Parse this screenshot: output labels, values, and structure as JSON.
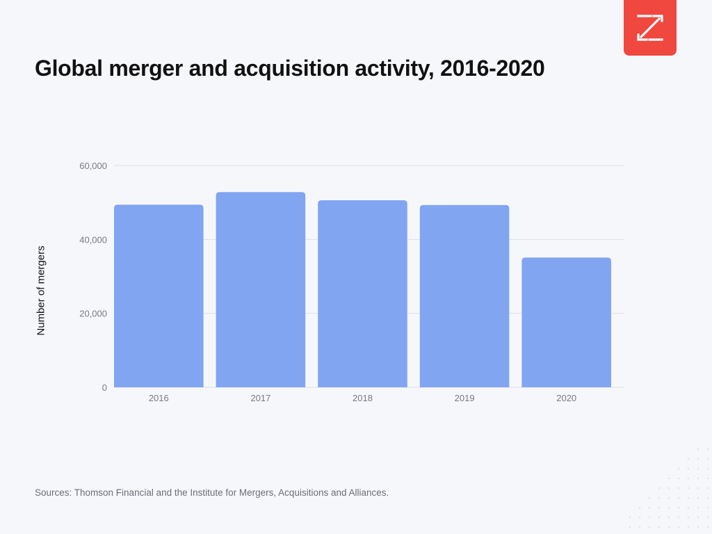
{
  "title": "Global merger and acquisition activity, 2016-2020",
  "source": "Sources: Thomson Financial and the Institute for Mergers, Acquisitions and Alliances.",
  "logo_icon": "z-arrows-logo-icon",
  "colors": {
    "background": "#f6f7fb",
    "bar": "#82a5f1",
    "logo": "#f0473f",
    "grid": "#dcdfe5",
    "tick_text": "#757a82"
  },
  "chart_data": {
    "type": "bar",
    "title": "Global merger and acquisition activity, 2016-2020",
    "xlabel": "",
    "ylabel": "Number of mergers",
    "categories": [
      "2016",
      "2017",
      "2018",
      "2019",
      "2020"
    ],
    "values": [
      49400,
      52800,
      50600,
      49300,
      35100
    ],
    "ylim": [
      0,
      60000
    ],
    "yticks": [
      0,
      20000,
      40000,
      60000
    ],
    "ytick_labels": [
      "0",
      "20,000",
      "40,000",
      "60,000"
    ],
    "grid": true,
    "legend": "none"
  }
}
